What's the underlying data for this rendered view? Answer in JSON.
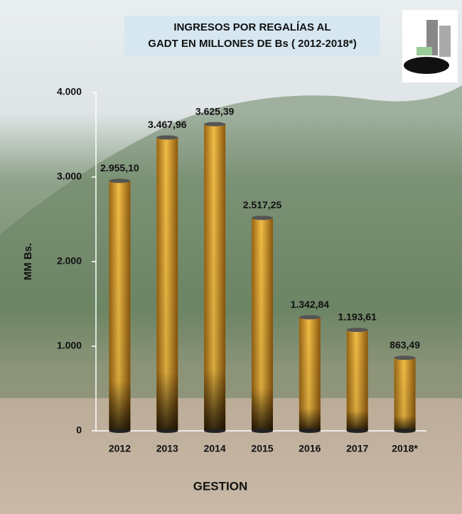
{
  "chart_data": {
    "type": "bar",
    "title": [
      "INGRESOS POR REGALÍAS AL",
      "GADT EN MILLONES DE Bs ( 2012-2018*)"
    ],
    "y_label": "MM Bs.",
    "x_label": "GESTION",
    "categories": [
      "2012",
      "2013",
      "2014",
      "2015",
      "2016",
      "2017",
      "2018*"
    ],
    "values": [
      2955.1,
      3467.96,
      3625.39,
      2517.25,
      1342.84,
      1193.61,
      863.49
    ],
    "value_labels": [
      "2.955,10",
      "3.467,96",
      "3.625,39",
      "2.517,25",
      "1.342,84",
      "1.193,61",
      "863,49"
    ],
    "color": "#e0a02a",
    "ylim": [
      0,
      4000
    ],
    "yticks": [
      0,
      {
        "value": 1000,
        "label": "1.000"
      },
      {
        "value": 2000,
        "label": "2.000"
      },
      {
        "value": 3000,
        "label": "3.000"
      },
      {
        "value": 4000,
        "label": "4.000"
      }
    ]
  }
}
